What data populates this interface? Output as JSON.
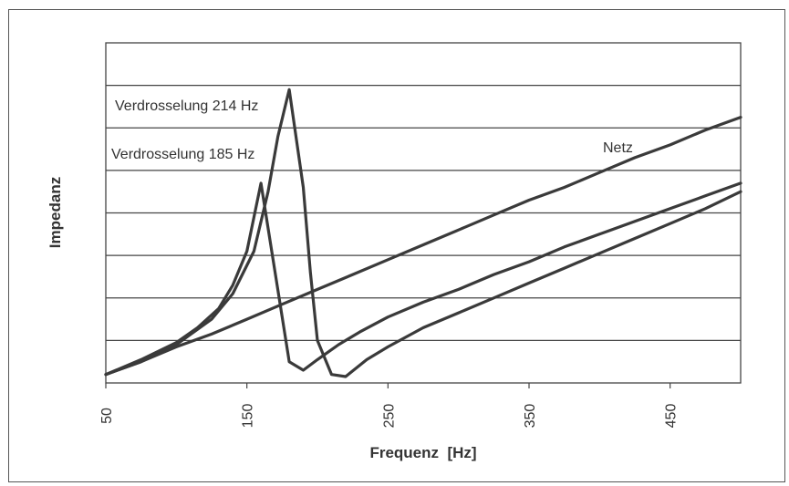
{
  "chart_data": {
    "type": "line",
    "title": "",
    "xlabel": "Frequenz  [Hz]",
    "ylabel": "Impedanz",
    "xlim": [
      50,
      500
    ],
    "ylim": [
      0,
      8
    ],
    "xticks": [
      50,
      150,
      250,
      350,
      450
    ],
    "ygrid_lines": [
      1,
      2,
      3,
      4,
      5,
      6,
      7
    ],
    "grid": "horizontal",
    "series": [
      {
        "name": "Netz",
        "x": [
          50,
          75,
          100,
          125,
          150,
          175,
          200,
          225,
          250,
          275,
          300,
          325,
          350,
          375,
          400,
          425,
          450,
          475,
          500
        ],
        "y": [
          0.2,
          0.5,
          0.85,
          1.15,
          1.5,
          1.85,
          2.2,
          2.55,
          2.9,
          3.25,
          3.6,
          3.95,
          4.3,
          4.6,
          4.95,
          5.3,
          5.6,
          5.95,
          6.25
        ]
      },
      {
        "name": "Verdrosselung 185 Hz",
        "x": [
          50,
          75,
          100,
          115,
          130,
          140,
          150,
          160,
          170,
          180,
          190,
          200,
          215,
          230,
          250,
          275,
          300,
          325,
          350,
          375,
          400,
          425,
          450,
          475,
          500
        ],
        "y": [
          0.2,
          0.55,
          0.95,
          1.3,
          1.75,
          2.3,
          3.1,
          4.7,
          2.6,
          0.5,
          0.3,
          0.55,
          0.9,
          1.2,
          1.55,
          1.9,
          2.2,
          2.55,
          2.85,
          3.2,
          3.5,
          3.8,
          4.1,
          4.4,
          4.7
        ]
      },
      {
        "name": "Verdrosselung 214 Hz",
        "x": [
          50,
          75,
          100,
          125,
          140,
          155,
          165,
          172,
          180,
          190,
          195,
          200,
          210,
          220,
          235,
          250,
          275,
          300,
          325,
          350,
          375,
          400,
          425,
          450,
          475,
          500
        ],
        "y": [
          0.2,
          0.5,
          0.9,
          1.5,
          2.1,
          3.1,
          4.5,
          5.8,
          6.9,
          4.6,
          2.6,
          1.0,
          0.2,
          0.15,
          0.55,
          0.85,
          1.3,
          1.65,
          2.0,
          2.35,
          2.7,
          3.05,
          3.4,
          3.75,
          4.1,
          4.5
        ]
      }
    ],
    "annotations": [
      {
        "text": "Verdrosselung 214 Hz"
      },
      {
        "text": "Verdrosselung 185 Hz"
      },
      {
        "text": "Netz"
      }
    ]
  }
}
